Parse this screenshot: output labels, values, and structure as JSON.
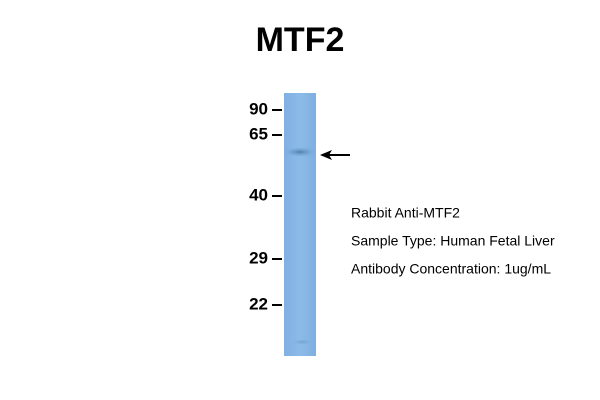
{
  "title": "MTF2",
  "markers": [
    90,
    65,
    40,
    29,
    22
  ],
  "info": [
    "Rabbit Anti-MTF2",
    "Sample Type: Human Fetal Liver",
    "Antibody Concentration: 1ug/mL"
  ]
}
